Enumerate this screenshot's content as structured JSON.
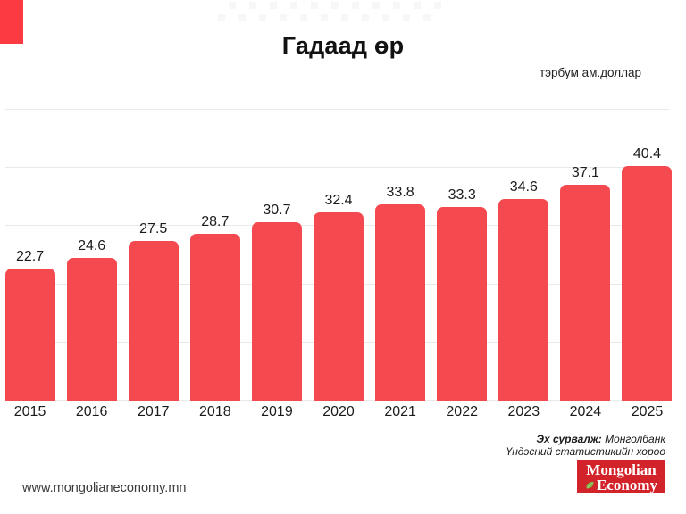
{
  "title": "Гадаад өр",
  "unit_label": "тэрбум ам.доллар",
  "website": "www.mongolianeconomy.mn",
  "source": {
    "label": "Эх сурвалж:",
    "line1": "Монголбанк",
    "line2": "Үндэсний статистикийн хороо"
  },
  "logo": {
    "line1": "Mongolian",
    "line2": "Economy",
    "bg_color": "#d2222a",
    "text_color": "#ffffff",
    "leaf_color": "#7cb342",
    "leaf_dark_color": "#4e9a2e"
  },
  "colors": {
    "bar": "#f4494f",
    "accent_block": "#fb3b41",
    "gridline": "#e9e9e9",
    "label_text": "#1b1b1b"
  },
  "chart_data": {
    "type": "bar",
    "title": "Гадаад өр",
    "subtitle": "",
    "xlabel": "",
    "ylabel": "тэрбум ам.доллар",
    "categories": [
      "2015",
      "2016",
      "2017",
      "2018",
      "2019",
      "2020",
      "2021",
      "2022",
      "2023",
      "2024",
      "2025"
    ],
    "values": [
      22.7,
      24.6,
      27.5,
      28.7,
      30.7,
      32.4,
      33.8,
      33.3,
      34.6,
      37.1,
      40.4
    ],
    "ylim": [
      0,
      50
    ],
    "gridline_step": 10,
    "grid": true,
    "legend": false,
    "data_labels": true
  }
}
